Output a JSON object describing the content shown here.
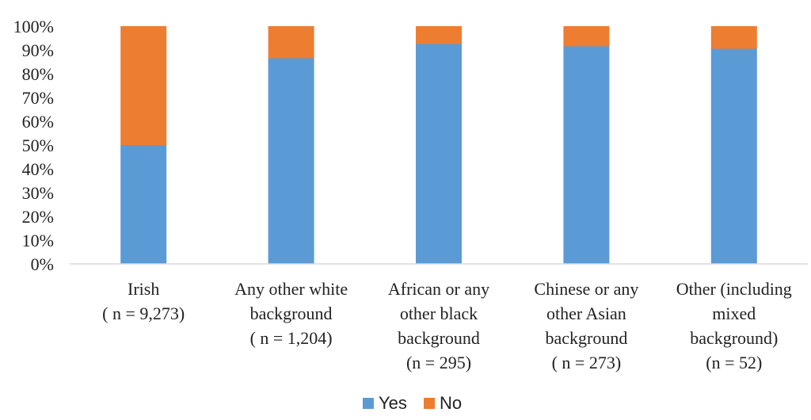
{
  "chart_data": {
    "type": "bar",
    "stacked": true,
    "normalized": true,
    "categories": [
      [
        "Irish",
        "( n = 9,273)"
      ],
      [
        "Any other white",
        "background",
        "( n = 1,204)"
      ],
      [
        "African or any",
        "other black",
        "background",
        "(n = 295)"
      ],
      [
        "Chinese or any",
        "other Asian",
        "background",
        "( n = 273)"
      ],
      [
        "Other (including",
        "mixed",
        "background)",
        "(n = 52)"
      ]
    ],
    "series": [
      {
        "name": "Yes",
        "color": "#5b9bd5",
        "values": [
          50,
          86.5,
          92.5,
          91.5,
          90.5
        ]
      },
      {
        "name": "No",
        "color": "#ed7d31",
        "values": [
          50,
          13.5,
          7.5,
          8.5,
          9.5
        ]
      }
    ],
    "yticks": [
      "0%",
      "10%",
      "20%",
      "30%",
      "40%",
      "50%",
      "60%",
      "70%",
      "80%",
      "90%",
      "100%"
    ],
    "ylim": [
      0,
      100
    ],
    "grid": false,
    "legend_position": "bottom"
  }
}
